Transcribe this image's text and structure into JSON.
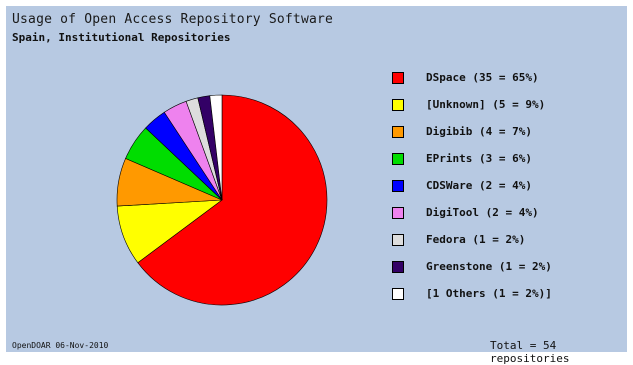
{
  "chart_data": {
    "type": "pie",
    "title": "Usage of Open Access Repository Software",
    "subtitle": "Spain, Institutional Repositories",
    "slices": [
      {
        "label": "DSpace (35 = 65%)",
        "value": 35,
        "color": "#ff0000"
      },
      {
        "label": "[Unknown] (5 = 9%)",
        "value": 5,
        "color": "#ffff00"
      },
      {
        "label": "Digibib (4 = 7%)",
        "value": 4,
        "color": "#ff9900"
      },
      {
        "label": "EPrints (3 = 6%)",
        "value": 3,
        "color": "#00dd00"
      },
      {
        "label": "CDSWare (2 = 4%)",
        "value": 2,
        "color": "#0000ff"
      },
      {
        "label": "DigiTool (2 = 4%)",
        "value": 2,
        "color": "#ee82ee"
      },
      {
        "label": "Fedora (1 = 2%)",
        "value": 1,
        "color": "#dddddd"
      },
      {
        "label": "Greenstone (1 = 2%)",
        "value": 1,
        "color": "#330066"
      },
      {
        "label": "[1 Others (1 = 2%)]",
        "value": 1,
        "color": "#ffffff"
      }
    ],
    "legend_position": "right",
    "source_note": "OpenDOAR 06-Nov-2010",
    "total_note": "Total = 54 repositories"
  }
}
